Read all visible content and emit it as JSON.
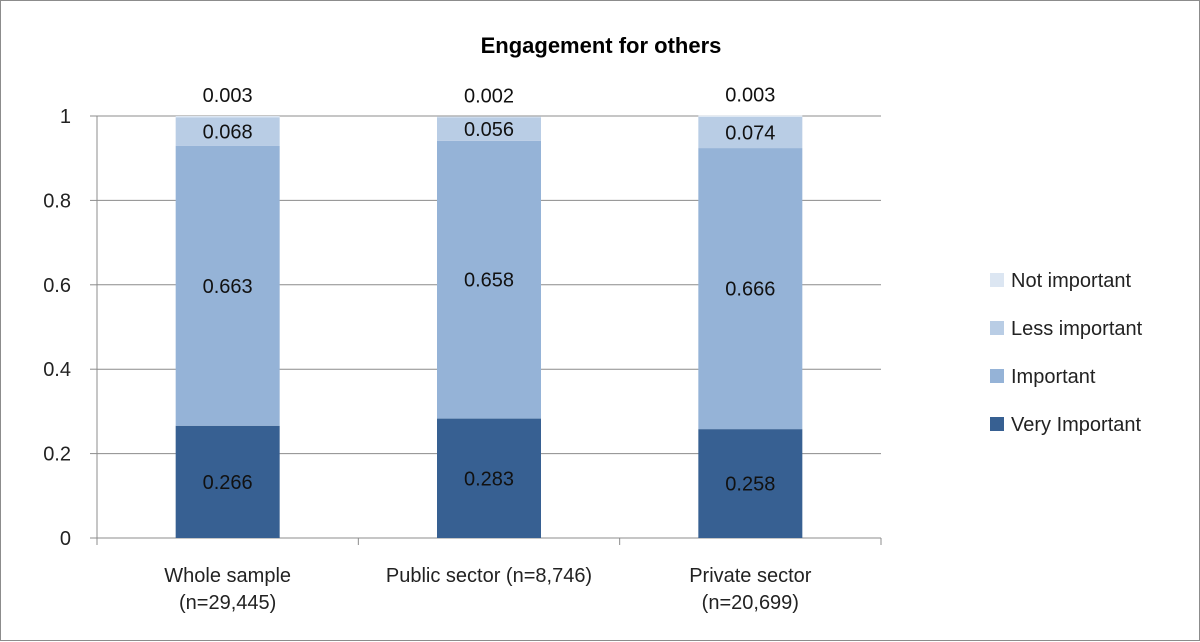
{
  "chart_data": {
    "type": "bar",
    "stacked": true,
    "title": "Engagement for others",
    "xlabel": "",
    "ylabel": "",
    "ylim": [
      0,
      1
    ],
    "yticks": [
      "0",
      "0.2",
      "0.4",
      "0.6",
      "0.8",
      "1"
    ],
    "categories": [
      [
        "Whole sample",
        "(n=29,445)"
      ],
      [
        "Public sector (n=8,746)"
      ],
      [
        "Private sector",
        "(n=20,699)"
      ]
    ],
    "series": [
      {
        "name": "Very Important",
        "color": "#376092",
        "label_color": "#111111",
        "values": [
          0.266,
          0.283,
          0.258
        ],
        "labels": [
          "0.266",
          "0.283",
          "0.258"
        ]
      },
      {
        "name": "Important",
        "color": "#95b3d7",
        "label_color": "#111111",
        "values": [
          0.663,
          0.658,
          0.666
        ],
        "labels": [
          "0.663",
          "0.658",
          "0.666"
        ]
      },
      {
        "name": "Less important",
        "color": "#b9cde5",
        "label_color": "#111111",
        "values": [
          0.068,
          0.056,
          0.074
        ],
        "labels": [
          "0.068",
          "0.056",
          "0.074"
        ]
      },
      {
        "name": "Not important",
        "color": "#dce6f2",
        "label_color": "#111111",
        "values": [
          0.003,
          0.002,
          0.003
        ],
        "labels": [
          "0.003",
          "0.002",
          "0.003"
        ]
      }
    ],
    "legend_position": "right",
    "grid": true
  }
}
